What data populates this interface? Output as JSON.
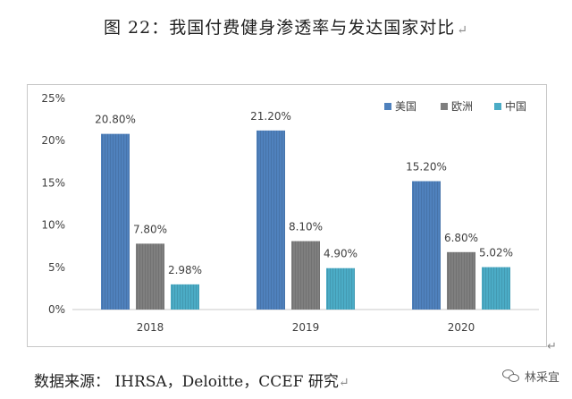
{
  "title": "图 22：我国付费健身渗透率与发达国家对比",
  "return_glyph": "↵",
  "source": "数据来源： IHRSA，Deloitte，CCEF 研究",
  "watermark": {
    "icon": "wechat-icon",
    "text": "林采宜"
  },
  "chart_data": {
    "type": "bar",
    "title": "",
    "xlabel": "",
    "ylabel": "",
    "categories": [
      "2018",
      "2019",
      "2020"
    ],
    "series": [
      {
        "name": "美国",
        "values": [
          20.8,
          21.2,
          15.2
        ],
        "labels": [
          "20.80%",
          "21.20%",
          "15.20%"
        ],
        "color": "#4f81bd"
      },
      {
        "name": "欧洲",
        "values": [
          7.8,
          8.1,
          6.8
        ],
        "labels": [
          "7.80%",
          "8.10%",
          "6.80%"
        ],
        "color": "#7f7f7f"
      },
      {
        "name": "中国",
        "values": [
          2.98,
          4.9,
          5.02
        ],
        "labels": [
          "2.98%",
          "4.90%",
          "5.02%"
        ],
        "color": "#4bacc6"
      }
    ],
    "ylim": [
      0,
      25
    ],
    "yticks": [
      0,
      5,
      10,
      15,
      20,
      25
    ],
    "ytick_labels": [
      "0%",
      "5%",
      "10%",
      "15%",
      "20%",
      "25%"
    ],
    "grid": false,
    "legend": "top-right",
    "bar_pattern": "vertical hatching"
  }
}
